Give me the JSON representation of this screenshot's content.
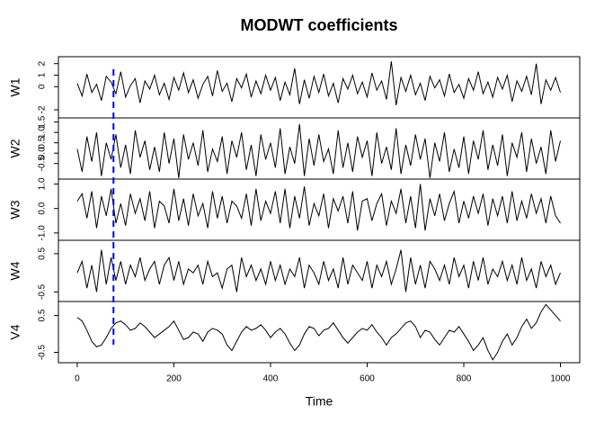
{
  "chart_data": {
    "type": "line",
    "title": "MODWT coefficients",
    "x_label": "Time",
    "color": "#000000",
    "xlim": [
      -39,
      1040
    ],
    "xticks": [
      0,
      200,
      400,
      600,
      800,
      1000
    ],
    "reference_line": {
      "x": 75,
      "color": "#0000ff"
    },
    "x": [
      0,
      10,
      20,
      30,
      40,
      50,
      60,
      70,
      80,
      90,
      100,
      110,
      120,
      130,
      140,
      150,
      160,
      170,
      180,
      190,
      200,
      210,
      220,
      230,
      240,
      250,
      260,
      270,
      280,
      290,
      300,
      310,
      320,
      330,
      340,
      350,
      360,
      370,
      380,
      390,
      400,
      410,
      420,
      430,
      440,
      450,
      460,
      470,
      480,
      490,
      500,
      510,
      520,
      530,
      540,
      550,
      560,
      570,
      580,
      590,
      600,
      610,
      620,
      630,
      640,
      650,
      660,
      670,
      680,
      690,
      700,
      710,
      720,
      730,
      740,
      750,
      760,
      770,
      780,
      790,
      800,
      810,
      820,
      830,
      840,
      850,
      860,
      870,
      880,
      890,
      900,
      910,
      920,
      930,
      940,
      950,
      960,
      970,
      980,
      990,
      1000
    ],
    "panels": [
      {
        "name": "W1",
        "ylim": [
          -2.7,
          2.6
        ],
        "yticks": [
          -2,
          0,
          1,
          2
        ],
        "values": [
          0.3,
          -0.8,
          1.1,
          -0.5,
          0.2,
          -1.2,
          0.9,
          0.4,
          -0.6,
          1.3,
          -0.9,
          0.1,
          0.7,
          -1.4,
          0.5,
          -0.2,
          1.0,
          -0.7,
          0.3,
          -1.1,
          0.8,
          -0.3,
          1.2,
          -0.5,
          0.6,
          -1.0,
          0.2,
          0.9,
          -0.8,
          1.4,
          -0.4,
          0.3,
          -1.3,
          0.7,
          -0.1,
          1.1,
          -0.9,
          0.5,
          -0.6,
          1.0,
          -0.3,
          0.8,
          -1.2,
          0.4,
          -0.7,
          1.6,
          -1.5,
          0.6,
          -1.0,
          0.9,
          -0.5,
          1.1,
          -0.8,
          0.3,
          -1.4,
          0.7,
          -0.2,
          1.0,
          -0.6,
          0.4,
          -0.9,
          1.2,
          -0.3,
          0.5,
          -1.1,
          2.2,
          -1.6,
          0.8,
          -0.4,
          1.0,
          -0.7,
          0.3,
          -1.2,
          0.9,
          -0.1,
          0.6,
          -0.8,
          1.1,
          -0.5,
          0.2,
          -1.0,
          0.7,
          -0.3,
          1.3,
          -0.6,
          0.4,
          -0.9,
          0.8,
          -0.2,
          1.0,
          -1.3,
          0.5,
          -0.4,
          0.9,
          -0.7,
          2.0,
          -1.5,
          0.6,
          -0.3,
          0.8,
          -0.5
        ]
      },
      {
        "name": "W2",
        "ylim": [
          -1.25,
          1.7
        ],
        "yticks": [
          -0.5,
          {
            "value": 0,
            "label": "0.0"
          },
          0.5,
          {
            "value": 1,
            "label": "1.0"
          },
          1.5
        ],
        "values": [
          0.2,
          -0.9,
          0.8,
          -0.4,
          1.0,
          -1.1,
          0.5,
          -0.3,
          0.9,
          -0.7,
          0.4,
          -1.0,
          1.1,
          -0.2,
          0.6,
          -0.8,
          0.3,
          -0.9,
          1.0,
          -0.5,
          0.7,
          -1.2,
          0.9,
          -0.3,
          0.5,
          -0.6,
          1.1,
          -0.9,
          0.2,
          -0.4,
          0.8,
          -1.0,
          0.6,
          -0.2,
          1.0,
          -0.8,
          0.4,
          -1.1,
          0.9,
          -0.3,
          0.5,
          -0.7,
          1.2,
          -1.0,
          0.3,
          -0.5,
          1.4,
          -1.1,
          0.7,
          -0.6,
          0.9,
          -0.4,
          0.2,
          -1.0,
          1.1,
          -0.7,
          0.5,
          -0.9,
          0.8,
          -0.2,
          0.6,
          -1.1,
          1.0,
          -0.5,
          0.3,
          -0.8,
          1.2,
          -1.0,
          0.4,
          -0.6,
          0.9,
          -0.3,
          0.7,
          -1.2,
          0.5,
          -0.4,
          1.0,
          -0.9,
          0.2,
          -0.7,
          0.8,
          -1.0,
          0.6,
          -0.3,
          1.1,
          -0.8,
          0.4,
          -0.6,
          0.9,
          -1.1,
          0.5,
          -0.2,
          1.0,
          -0.9,
          0.7,
          -0.5,
          0.3,
          -1.0,
          1.1,
          -0.4,
          0.6
        ]
      },
      {
        "name": "W3",
        "ylim": [
          -1.3,
          1.2
        ],
        "yticks": [
          {
            "value": -1,
            "label": "-1.0"
          },
          {
            "value": 0,
            "label": "0.0"
          },
          {
            "value": 1,
            "label": "1.0"
          }
        ],
        "values": [
          0.3,
          0.6,
          -0.4,
          0.7,
          -0.8,
          0.5,
          -0.3,
          0.8,
          -0.6,
          0.2,
          -0.7,
          0.6,
          -0.2,
          0.4,
          -0.5,
          0.7,
          -0.8,
          0.3,
          0.1,
          -0.6,
          0.8,
          -0.5,
          0.4,
          -0.7,
          0.6,
          -0.3,
          0.2,
          -0.8,
          0.7,
          -0.4,
          0.5,
          -0.6,
          0.3,
          0.1,
          -0.4,
          0.6,
          -0.7,
          0.8,
          -0.5,
          0.3,
          -0.2,
          0.7,
          -0.6,
          0.8,
          -0.8,
          0.5,
          -0.4,
          0.9,
          -0.7,
          0.2,
          -0.3,
          0.6,
          -0.8,
          0.4,
          -0.1,
          0.5,
          -0.6,
          0.7,
          -0.9,
          0.3,
          0.4,
          -0.5,
          0.2,
          0.6,
          -0.7,
          0.3,
          -0.2,
          0.8,
          -0.6,
          0.5,
          -0.8,
          1.0,
          -0.9,
          0.4,
          -0.3,
          0.6,
          -0.5,
          0.2,
          0.7,
          -0.6,
          0.3,
          -0.4,
          0.5,
          -0.2,
          0.6,
          -0.7,
          0.4,
          -0.3,
          0.5,
          -0.6,
          0.7,
          -0.5,
          0.3,
          -0.4,
          0.6,
          -0.2,
          0.4,
          -0.6,
          0.5,
          -0.3,
          -0.6
        ]
      },
      {
        "name": "W4",
        "ylim": [
          -0.75,
          0.85
        ],
        "yticks": [
          -0.5,
          0.5
        ],
        "values": [
          0.0,
          0.3,
          -0.4,
          0.2,
          -0.5,
          0.6,
          -0.3,
          0.4,
          -0.2,
          0.3,
          -0.3,
          0.2,
          -0.1,
          0.4,
          -0.2,
          0.1,
          0.3,
          -0.3,
          0.2,
          0.4,
          -0.2,
          0.3,
          -0.3,
          0.1,
          0.0,
          0.2,
          -0.3,
          0.3,
          -0.1,
          0.0,
          -0.4,
          0.1,
          0.2,
          -0.5,
          0.4,
          -0.1,
          0.2,
          -0.2,
          0.1,
          -0.3,
          0.3,
          -0.2,
          0.2,
          -0.3,
          0.1,
          -0.1,
          0.4,
          -0.4,
          0.2,
          0.0,
          -0.3,
          0.3,
          -0.2,
          0.1,
          -0.4,
          0.4,
          -0.3,
          0.2,
          0.0,
          -0.2,
          0.3,
          -0.4,
          0.2,
          -0.1,
          0.3,
          -0.3,
          0.1,
          0.6,
          -0.5,
          0.4,
          -0.3,
          0.2,
          -0.4,
          0.3,
          0.1,
          -0.2,
          0.2,
          -0.3,
          0.4,
          -0.1,
          0.2,
          -0.4,
          0.3,
          -0.2,
          0.4,
          -0.3,
          0.1,
          -0.1,
          0.3,
          -0.2,
          0.2,
          -0.3,
          0.4,
          -0.2,
          0.1,
          -0.4,
          0.3,
          -0.1,
          0.2,
          -0.3,
          0.0
        ]
      },
      {
        "name": "V4",
        "ylim": [
          -0.78,
          0.88
        ],
        "yticks": [
          -0.5,
          0.5
        ],
        "values": [
          0.45,
          0.35,
          0.1,
          -0.2,
          -0.35,
          -0.3,
          -0.1,
          0.15,
          0.3,
          0.35,
          0.25,
          0.1,
          0.15,
          0.3,
          0.2,
          0.05,
          -0.1,
          0.0,
          0.1,
          0.2,
          0.35,
          0.1,
          -0.15,
          -0.1,
          0.05,
          0.0,
          -0.2,
          0.05,
          0.15,
          0.1,
          0.0,
          -0.3,
          -0.45,
          -0.2,
          0.05,
          0.2,
          0.1,
          0.15,
          0.25,
          0.1,
          -0.1,
          0.05,
          0.15,
          0.0,
          -0.25,
          -0.45,
          -0.3,
          0.0,
          0.2,
          0.15,
          -0.05,
          0.1,
          0.15,
          0.3,
          0.1,
          -0.1,
          -0.25,
          -0.1,
          0.05,
          0.15,
          0.1,
          0.25,
          0.05,
          -0.1,
          -0.3,
          -0.1,
          0.0,
          0.15,
          0.3,
          0.35,
          0.2,
          -0.1,
          0.1,
          0.05,
          -0.15,
          -0.3,
          -0.1,
          0.1,
          0.05,
          0.2,
          0.0,
          -0.2,
          -0.45,
          -0.3,
          -0.1,
          -0.45,
          -0.7,
          -0.5,
          -0.2,
          0.0,
          -0.3,
          -0.1,
          0.2,
          0.4,
          0.15,
          0.3,
          0.6,
          0.8,
          0.65,
          0.5,
          0.35
        ]
      }
    ]
  }
}
